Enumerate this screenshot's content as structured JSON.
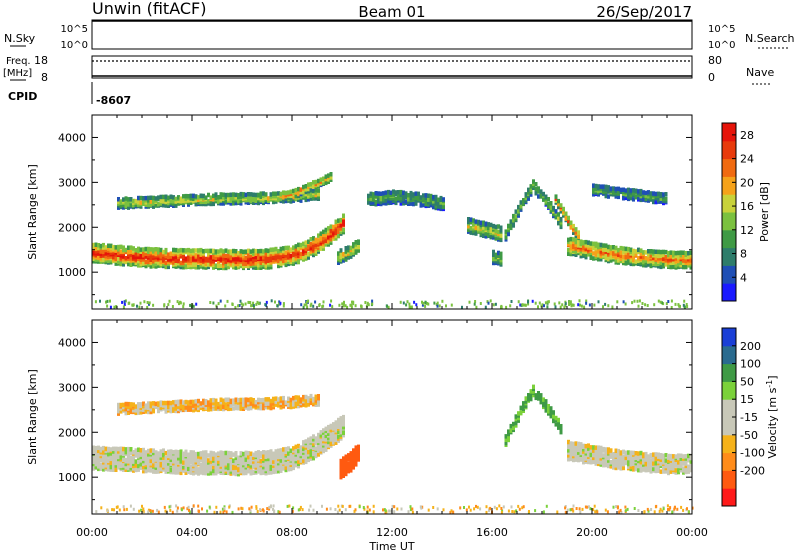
{
  "header": {
    "station": "Unwin (fitACF)",
    "beam": "Beam 01",
    "date": "26/Sep/2017"
  },
  "top_panels": {
    "nsky_label": "N.Sky",
    "nsky_ticks": [
      "10^5",
      "10^0"
    ],
    "nsearch_label": "N.Search",
    "freq_label_1": "Freq.",
    "freq_label_2": "[MHz]",
    "freq_ticks": [
      "18",
      "8"
    ],
    "nave_ticks": [
      "80",
      "0"
    ],
    "nave_label": "Nave",
    "cpid_label": "CPID",
    "cpid_value": "-8607"
  },
  "colors": {
    "power_scale": [
      "#1a1aff",
      "#1f4fb5",
      "#2e7d6b",
      "#3f9a45",
      "#7bc13f",
      "#c8d23a",
      "#f5a21a",
      "#f06a10",
      "#e83a0c",
      "#e6140a"
    ],
    "velocity_scale": [
      "#ff1a1a",
      "#ff5a10",
      "#ff8c1a",
      "#f5b21a",
      "#c8c8b8",
      "#c8c8b8",
      "#7bd13a",
      "#3f9a45",
      "#2a6b8f",
      "#1a3fd6"
    ],
    "noise_green": "#7bc13f"
  },
  "chart_data": [
    {
      "type": "heatmap",
      "title": "",
      "xlabel": "Time UT",
      "ylabel": "Slant Range [km]",
      "xlim": [
        "00:00",
        "24:00"
      ],
      "ylim": [
        180,
        4500
      ],
      "x_ticks": [
        "00:00",
        "04:00",
        "08:00",
        "12:00",
        "16:00",
        "20:00",
        "00:00"
      ],
      "y_ticks": [
        1000,
        2000,
        3000,
        4000
      ],
      "colorbar": {
        "label": "Power [dB]",
        "ticks": [
          4,
          8,
          12,
          16,
          20,
          24,
          28
        ],
        "range": [
          0,
          30
        ]
      },
      "regions": [
        {
          "name": "main-band",
          "t": [
            0,
            1,
            2,
            3,
            4,
            5,
            6,
            7,
            8,
            8.5,
            9,
            9.5,
            10
          ],
          "r_center": [
            1400,
            1350,
            1300,
            1280,
            1270,
            1260,
            1250,
            1270,
            1350,
            1450,
            1600,
            1800,
            2050
          ],
          "half_width": 190,
          "power": 24
        },
        {
          "name": "upper-band",
          "t": [
            1,
            3,
            5,
            7,
            8,
            9
          ],
          "r_center": [
            2500,
            2550,
            2600,
            2620,
            2650,
            2700
          ],
          "half_width": 100,
          "power": 14
        },
        {
          "name": "arc-0930",
          "t": [
            7.5,
            8.2,
            8.8,
            9.2,
            9.5
          ],
          "r_center": [
            2650,
            2750,
            2900,
            3000,
            3100
          ],
          "half_width": 80,
          "power": 18
        },
        {
          "name": "patch-1030",
          "t": [
            9.8,
            10.2,
            10.6
          ],
          "r_center": [
            1300,
            1400,
            1550
          ],
          "half_width": 120,
          "power": 16
        },
        {
          "name": "patch-1230",
          "t": [
            11,
            12,
            13,
            14
          ],
          "r_center": [
            2600,
            2650,
            2600,
            2500
          ],
          "half_width": 130,
          "power": 10
        },
        {
          "name": "patch-1600",
          "t": [
            15,
            15.8,
            16.4
          ],
          "r_center": [
            2000,
            1900,
            1800
          ],
          "half_width": 140,
          "power": 14
        },
        {
          "name": "patch-1640",
          "t": [
            16,
            16.4
          ],
          "r_center": [
            1300,
            1250
          ],
          "half_width": 120,
          "power": 12
        },
        {
          "name": "peak-1730",
          "t": [
            16.5,
            17.1,
            17.6,
            18.2,
            18.8
          ],
          "r_center": [
            1800,
            2450,
            2900,
            2500,
            2000
          ],
          "half_width": 110,
          "power": 12
        },
        {
          "name": "streak-1920",
          "t": [
            18.5,
            19.1,
            19.5
          ],
          "r_center": [
            2600,
            2000,
            1700
          ],
          "half_width": 80,
          "power": 20
        },
        {
          "name": "evening-band",
          "t": [
            19,
            20,
            21,
            22,
            23,
            24
          ],
          "r_center": [
            1550,
            1450,
            1350,
            1300,
            1250,
            1250
          ],
          "half_width": 170,
          "power": 20
        },
        {
          "name": "evening-upper",
          "t": [
            20,
            21.5,
            23
          ],
          "r_center": [
            2800,
            2700,
            2600
          ],
          "half_width": 100,
          "power": 10
        }
      ]
    },
    {
      "type": "heatmap",
      "title": "",
      "xlabel": "Time UT",
      "ylabel": "Slant Range [km]",
      "xlim": [
        "00:00",
        "24:00"
      ],
      "ylim": [
        180,
        4500
      ],
      "x_ticks": [
        "00:00",
        "04:00",
        "08:00",
        "12:00",
        "16:00",
        "20:00",
        "00:00"
      ],
      "y_ticks": [
        1000,
        2000,
        3000,
        4000
      ],
      "colorbar": {
        "label": "Velocity [m s^-1]",
        "ticks": [
          200,
          100,
          50,
          15,
          -15,
          -50,
          -100,
          -200
        ]
      },
      "regions": [
        {
          "name": "main-band",
          "t": [
            0,
            2,
            4,
            6,
            7,
            8,
            8.5,
            9,
            9.5,
            10
          ],
          "r_center": [
            1400,
            1350,
            1300,
            1280,
            1300,
            1400,
            1550,
            1700,
            1900,
            2100
          ],
          "half_width": 240,
          "velocity": 0
        },
        {
          "name": "upper-band",
          "t": [
            1,
            3,
            5,
            7,
            8,
            9
          ],
          "r_center": [
            2500,
            2550,
            2600,
            2620,
            2650,
            2700
          ],
          "half_width": 110,
          "velocity": -20
        },
        {
          "name": "patch-1030",
          "t": [
            9.9,
            10.3,
            10.6
          ],
          "r_center": [
            1150,
            1300,
            1500
          ],
          "half_width": 180,
          "velocity": -100
        },
        {
          "name": "peak-1730",
          "t": [
            16.5,
            17.1,
            17.6,
            18.2,
            18.8
          ],
          "r_center": [
            1800,
            2450,
            2900,
            2500,
            2000
          ],
          "half_width": 110,
          "velocity": 40
        },
        {
          "name": "evening-band",
          "t": [
            19,
            20,
            21,
            22,
            23,
            24
          ],
          "r_center": [
            1550,
            1450,
            1350,
            1300,
            1250,
            1250
          ],
          "half_width": 180,
          "velocity": 0
        }
      ]
    }
  ],
  "axis_labels": {
    "time": "Time UT",
    "slant_range": "Slant Range [km]",
    "power": "Power [dB]",
    "velocity_prefix": "Velocity [m s",
    "velocity_sup": "-1",
    "velocity_suffix": "]"
  }
}
